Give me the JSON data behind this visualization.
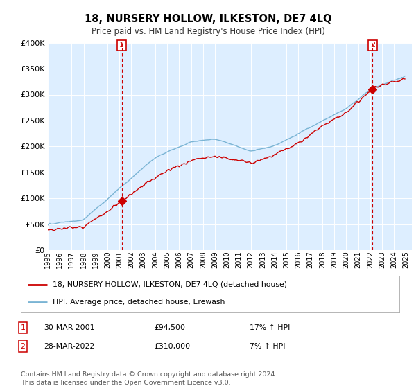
{
  "title": "18, NURSERY HOLLOW, ILKESTON, DE7 4LQ",
  "subtitle": "Price paid vs. HM Land Registry's House Price Index (HPI)",
  "legend_line1": "18, NURSERY HOLLOW, ILKESTON, DE7 4LQ (detached house)",
  "legend_line2": "HPI: Average price, detached house, Erewash",
  "sale1_date": "30-MAR-2001",
  "sale1_price": "£94,500",
  "sale1_hpi": "17% ↑ HPI",
  "sale2_date": "28-MAR-2022",
  "sale2_price": "£310,000",
  "sale2_hpi": "7% ↑ HPI",
  "footer": "Contains HM Land Registry data © Crown copyright and database right 2024.\nThis data is licensed under the Open Government Licence v3.0.",
  "red_color": "#cc0000",
  "blue_color": "#7ab4d4",
  "chart_bg": "#ddeeff",
  "vline_color": "#cc0000",
  "ylim": [
    0,
    400000
  ],
  "yticks": [
    0,
    50000,
    100000,
    150000,
    200000,
    250000,
    300000,
    350000,
    400000
  ],
  "sale1_year": 2001.2,
  "sale1_price_val": 94500,
  "sale2_year": 2022.2,
  "sale2_price_val": 310000
}
